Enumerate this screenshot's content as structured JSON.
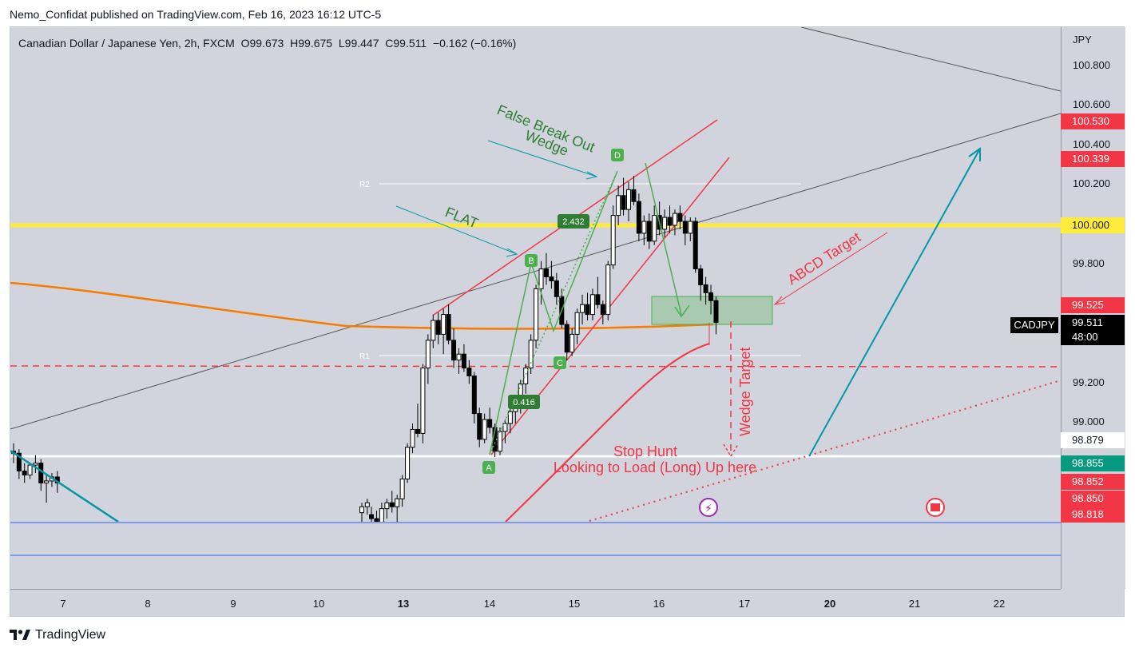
{
  "header": {
    "text": "Nemo_Confidat published on TradingView.com, Feb 16, 2023 16:12 UTC-5"
  },
  "legend": {
    "symbol": "Canadian Dollar / Japanese Yen, 2h, FXCM",
    "o_label": "O",
    "o": "99.673",
    "h_label": "H",
    "h": "99.675",
    "l_label": "L",
    "l": "99.447",
    "c_label": "C",
    "c": "99.511",
    "change": "−0.162 (−0.16%)"
  },
  "price_axis": {
    "currency": "JPY",
    "ticks": [
      "100.800",
      "100.600",
      "100.400",
      "100.200",
      "99.800",
      "99.200",
      "99.000"
    ],
    "badges": [
      {
        "label": "100.530",
        "color": "#f23645"
      },
      {
        "label": "100.339",
        "color": "#f23645"
      },
      {
        "label": "100.000",
        "color": "#ffeb3b"
      },
      {
        "label": "99.525",
        "color": "#f23645"
      },
      {
        "label": "99.511",
        "color": "#000000"
      },
      {
        "label": "48:00",
        "color": "#000000"
      },
      {
        "label": "98.879",
        "color": "#ffffff"
      },
      {
        "label": "98.855",
        "color": "#089981"
      },
      {
        "label": "98.852",
        "color": "#f23645"
      },
      {
        "label": "98.850",
        "color": "#f23645"
      },
      {
        "label": "98.818",
        "color": "#f23645"
      }
    ],
    "symbol_badge": "CADJPY"
  },
  "time_axis": {
    "ticks": [
      {
        "label": "7",
        "bold": false
      },
      {
        "label": "8",
        "bold": false
      },
      {
        "label": "9",
        "bold": false
      },
      {
        "label": "10",
        "bold": false
      },
      {
        "label": "13",
        "bold": true
      },
      {
        "label": "14",
        "bold": false
      },
      {
        "label": "15",
        "bold": false
      },
      {
        "label": "16",
        "bold": false
      },
      {
        "label": "17",
        "bold": false
      },
      {
        "label": "20",
        "bold": true
      },
      {
        "label": "21",
        "bold": false
      },
      {
        "label": "22",
        "bold": false
      }
    ]
  },
  "annotations": {
    "false_break": "False Break Out",
    "wedge": "Wedge",
    "flat": "FLAT",
    "abcd_target": "ABCD Target",
    "wedge_target": "Wedge Target",
    "stop_hunt": "Stop Hunt",
    "looking_to_load": "Looking to Load (Long) Up here",
    "r1": "R1",
    "r2": "R2",
    "point_a": "A",
    "point_b": "B",
    "point_c": "C",
    "point_d": "D",
    "ratio_1": "2.432",
    "ratio_2": "0.416"
  },
  "footer": {
    "brand": "TradingView"
  },
  "colors": {
    "up": "#ffffff",
    "down": "#000000",
    "red": "#f23645",
    "green": "#4caf50",
    "teal": "#0097a7",
    "yellow": "#ffeb3b",
    "orange": "#f57c00"
  },
  "candles": [
    [
      98.86,
      98.9,
      98.8,
      98.85
    ],
    [
      98.85,
      98.87,
      98.72,
      98.76
    ],
    [
      98.76,
      98.8,
      98.7,
      98.74
    ],
    [
      98.74,
      98.8,
      98.72,
      98.79
    ],
    [
      98.79,
      98.84,
      98.75,
      98.8
    ],
    [
      98.8,
      98.82,
      98.66,
      98.7
    ],
    [
      98.7,
      98.74,
      98.6,
      98.71
    ],
    [
      98.71,
      98.75,
      98.68,
      98.73
    ],
    [
      98.73,
      98.76,
      98.65,
      98.7
    ],
    [
      98.55,
      98.6,
      98.5,
      98.58
    ],
    [
      98.58,
      98.62,
      98.54,
      98.6
    ],
    [
      98.54,
      98.58,
      98.48,
      98.52
    ],
    [
      98.52,
      98.56,
      98.45,
      98.5
    ],
    [
      98.5,
      98.6,
      98.48,
      98.57
    ],
    [
      98.57,
      98.62,
      98.52,
      98.6
    ],
    [
      98.6,
      98.66,
      98.55,
      98.58
    ],
    [
      98.58,
      98.64,
      98.5,
      98.62
    ],
    [
      98.62,
      98.74,
      98.58,
      98.72
    ],
    [
      98.72,
      98.9,
      98.7,
      98.88
    ],
    [
      98.88,
      99.0,
      98.85,
      98.97
    ],
    [
      98.97,
      99.1,
      98.93,
      98.95
    ],
    [
      98.95,
      99.3,
      98.9,
      99.28
    ],
    [
      99.28,
      99.45,
      99.2,
      99.42
    ],
    [
      99.42,
      99.55,
      99.38,
      99.52
    ],
    [
      99.52,
      99.56,
      99.4,
      99.45
    ],
    [
      99.45,
      99.58,
      99.35,
      99.55
    ],
    [
      99.55,
      99.6,
      99.4,
      99.42
    ],
    [
      99.42,
      99.48,
      99.28,
      99.32
    ],
    [
      99.32,
      99.38,
      99.25,
      99.35
    ],
    [
      99.35,
      99.4,
      99.26,
      99.28
    ],
    [
      99.28,
      99.32,
      99.2,
      99.24
    ],
    [
      99.24,
      99.26,
      99.0,
      99.05
    ],
    [
      99.05,
      99.08,
      98.88,
      98.92
    ],
    [
      98.92,
      99.05,
      98.9,
      99.02
    ],
    [
      99.02,
      99.08,
      98.95,
      98.98
    ],
    [
      98.98,
      99.0,
      98.83,
      98.86
    ],
    [
      98.86,
      98.98,
      98.84,
      98.96
    ],
    [
      98.96,
      99.02,
      98.9,
      99.0
    ],
    [
      99.0,
      99.08,
      98.95,
      99.06
    ],
    [
      99.06,
      99.12,
      99.0,
      99.1
    ],
    [
      99.1,
      99.22,
      99.05,
      99.2
    ],
    [
      99.2,
      99.3,
      99.15,
      99.28
    ],
    [
      99.28,
      99.45,
      99.25,
      99.42
    ],
    [
      99.42,
      99.7,
      99.38,
      99.68
    ],
    [
      99.68,
      99.82,
      99.6,
      99.78
    ],
    [
      99.78,
      99.86,
      99.7,
      99.74
    ],
    [
      99.74,
      99.82,
      99.68,
      99.72
    ],
    [
      99.72,
      99.76,
      99.6,
      99.64
    ],
    [
      99.64,
      99.68,
      99.48,
      99.5
    ],
    [
      99.5,
      99.52,
      99.32,
      99.36
    ],
    [
      99.36,
      99.48,
      99.34,
      99.45
    ],
    [
      99.45,
      99.58,
      99.4,
      99.56
    ],
    [
      99.56,
      99.65,
      99.5,
      99.6
    ],
    [
      99.6,
      99.66,
      99.52,
      99.55
    ],
    [
      99.55,
      99.68,
      99.52,
      99.65
    ],
    [
      99.65,
      99.74,
      99.58,
      99.6
    ],
    [
      99.6,
      99.62,
      99.5,
      99.55
    ],
    [
      99.55,
      99.82,
      99.52,
      99.8
    ],
    [
      99.8,
      100.1,
      99.78,
      100.05
    ],
    [
      100.05,
      100.2,
      100.0,
      100.15
    ],
    [
      100.15,
      100.24,
      100.05,
      100.08
    ],
    [
      100.08,
      100.22,
      100.02,
      100.18
    ],
    [
      100.18,
      100.25,
      100.1,
      100.12
    ],
    [
      100.12,
      100.16,
      99.92,
      99.96
    ],
    [
      99.96,
      100.05,
      99.9,
      100.02
    ],
    [
      100.02,
      100.06,
      99.88,
      99.92
    ],
    [
      99.92,
      100.1,
      99.9,
      100.05
    ],
    [
      100.05,
      100.12,
      99.95,
      99.98
    ],
    [
      99.98,
      100.08,
      99.94,
      100.04
    ],
    [
      100.04,
      100.1,
      99.96,
      100.0
    ],
    [
      100.0,
      100.08,
      99.95,
      100.06
    ],
    [
      100.06,
      100.1,
      99.98,
      100.02
    ],
    [
      100.02,
      100.05,
      99.9,
      99.96
    ],
    [
      99.96,
      100.04,
      99.92,
      100.02
    ],
    [
      100.02,
      100.04,
      99.76,
      99.78
    ],
    [
      99.78,
      99.8,
      99.62,
      99.7
    ],
    [
      99.7,
      99.74,
      99.6,
      99.66
    ],
    [
      99.66,
      99.7,
      99.55,
      99.62
    ],
    [
      99.62,
      99.64,
      99.45,
      99.51
    ]
  ]
}
